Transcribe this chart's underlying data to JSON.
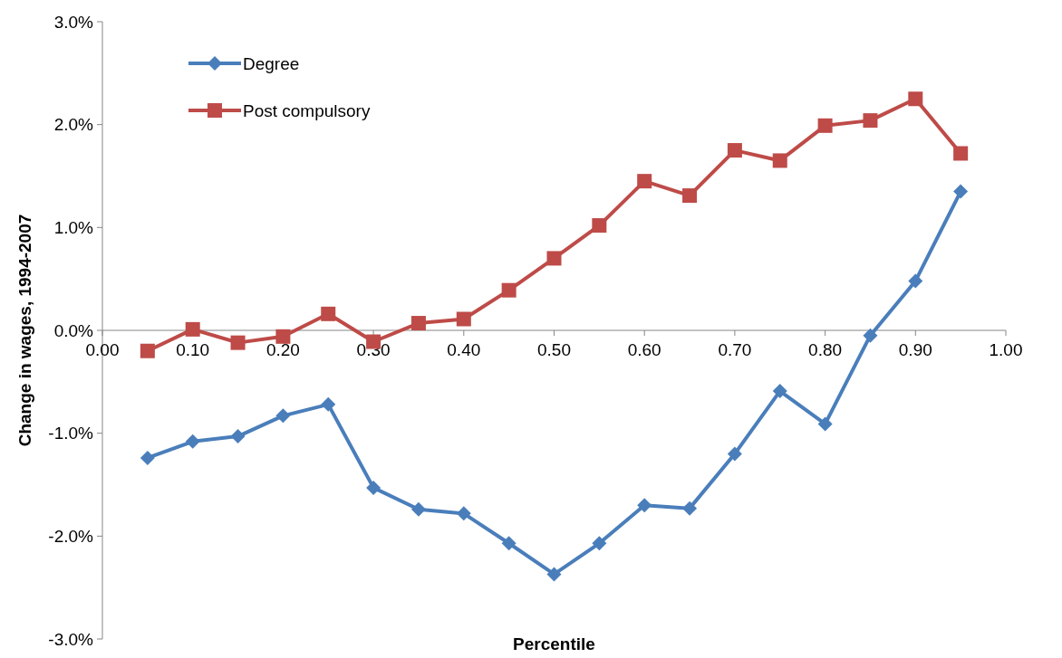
{
  "chart_data": {
    "type": "line",
    "xlabel": "Percentile",
    "ylabel": "Change in wages, 1994-2007",
    "x": [
      0.05,
      0.1,
      0.15,
      0.2,
      0.25,
      0.3,
      0.35,
      0.4,
      0.45,
      0.5,
      0.55,
      0.6,
      0.65,
      0.7,
      0.75,
      0.8,
      0.85,
      0.9,
      0.95
    ],
    "series": [
      {
        "name": "Degree",
        "color": "#4a7ebb",
        "marker": "diamond",
        "values": [
          -1.24,
          -1.08,
          -1.03,
          -0.83,
          -0.72,
          -1.53,
          -1.74,
          -1.78,
          -2.07,
          -2.37,
          -2.07,
          -1.7,
          -1.73,
          -1.2,
          -0.59,
          -0.91,
          -0.05,
          0.48,
          1.35
        ]
      },
      {
        "name": "Post compulsory",
        "color": "#be4b48",
        "marker": "square",
        "values": [
          -0.2,
          0.01,
          -0.12,
          -0.06,
          0.16,
          -0.11,
          0.07,
          0.11,
          0.39,
          0.7,
          1.02,
          1.45,
          1.31,
          1.75,
          1.65,
          1.99,
          2.04,
          2.25,
          1.72
        ]
      }
    ],
    "xlim": [
      0,
      1
    ],
    "xticks": [
      {
        "value": 0,
        "label": "0.00"
      },
      {
        "value": 0.1,
        "label": "0.10"
      },
      {
        "value": 0.2,
        "label": "0.20"
      },
      {
        "value": 0.3,
        "label": "0.30"
      },
      {
        "value": 0.4,
        "label": "0.40"
      },
      {
        "value": 0.5,
        "label": "0.50"
      },
      {
        "value": 0.6,
        "label": "0.60"
      },
      {
        "value": 0.7,
        "label": "0.70"
      },
      {
        "value": 0.8,
        "label": "0.80"
      },
      {
        "value": 0.9,
        "label": "0.90"
      },
      {
        "value": 1,
        "label": "1.00"
      }
    ],
    "ylim": [
      -3,
      3
    ],
    "yticks": [
      {
        "value": -3,
        "label": "-3.0%"
      },
      {
        "value": -2,
        "label": "-2.0%"
      },
      {
        "value": -1,
        "label": "-1.0%"
      },
      {
        "value": 0,
        "label": "0.0%"
      },
      {
        "value": 1,
        "label": "1.0%"
      },
      {
        "value": 2,
        "label": "2.0%"
      },
      {
        "value": 3,
        "label": "3.0%"
      }
    ],
    "grid": false,
    "legend": "top left",
    "line_style": "solid"
  }
}
